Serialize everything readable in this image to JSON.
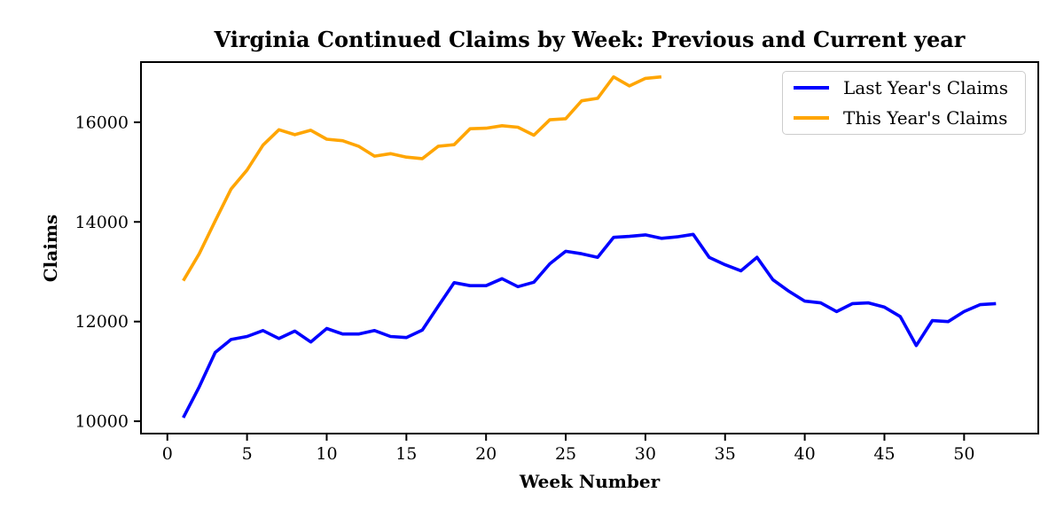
{
  "chart_data": {
    "type": "line",
    "title": "Virginia Continued Claims by Week: Previous and Current year",
    "xlabel": "Week Number",
    "ylabel": "Claims",
    "xlim": [
      -1.6,
      54.6
    ],
    "ylim": [
      9770,
      17190
    ],
    "x_ticks": [
      0,
      5,
      10,
      15,
      20,
      25,
      30,
      35,
      40,
      45,
      50
    ],
    "y_ticks": [
      10000,
      12000,
      14000,
      16000
    ],
    "grid": false,
    "legend_position": "upper right",
    "axis_color": "#000000",
    "series": [
      {
        "name": "Last Year's Claims",
        "color": "#0000ff",
        "x": [
          1,
          2,
          3,
          4,
          5,
          6,
          7,
          8,
          9,
          10,
          11,
          12,
          13,
          14,
          15,
          16,
          17,
          18,
          19,
          20,
          21,
          22,
          23,
          24,
          25,
          26,
          27,
          28,
          29,
          30,
          31,
          32,
          33,
          34,
          35,
          36,
          37,
          38,
          39,
          40,
          41,
          42,
          43,
          44,
          45,
          46,
          47,
          48,
          49,
          50,
          51,
          52
        ],
        "values": [
          10070,
          10690,
          11380,
          11640,
          11700,
          11820,
          11660,
          11810,
          11590,
          11860,
          11750,
          11750,
          11820,
          11700,
          11680,
          11830,
          12310,
          12780,
          12720,
          12720,
          12860,
          12700,
          12790,
          13160,
          13410,
          13360,
          13290,
          13690,
          13710,
          13740,
          13670,
          13700,
          13750,
          13290,
          13140,
          13020,
          13290,
          12840,
          12610,
          12410,
          12375,
          12200,
          12360,
          12375,
          12290,
          12100,
          11520,
          12020,
          12000,
          12200,
          12340,
          12360
        ]
      },
      {
        "name": "This Year's Claims",
        "color": "#ffa500",
        "x": [
          1,
          2,
          3,
          4,
          5,
          6,
          7,
          8,
          9,
          10,
          11,
          12,
          13,
          14,
          15,
          16,
          17,
          18,
          19,
          20,
          21,
          22,
          23,
          24,
          25,
          26,
          27,
          28,
          29,
          30,
          31
        ],
        "values": [
          12820,
          13360,
          14020,
          14660,
          15040,
          15540,
          15850,
          15750,
          15840,
          15660,
          15630,
          15520,
          15320,
          15370,
          15300,
          15270,
          15520,
          15550,
          15870,
          15880,
          15930,
          15900,
          15740,
          16050,
          16070,
          16430,
          16480,
          16910,
          16730,
          16880,
          16910
        ]
      }
    ]
  }
}
